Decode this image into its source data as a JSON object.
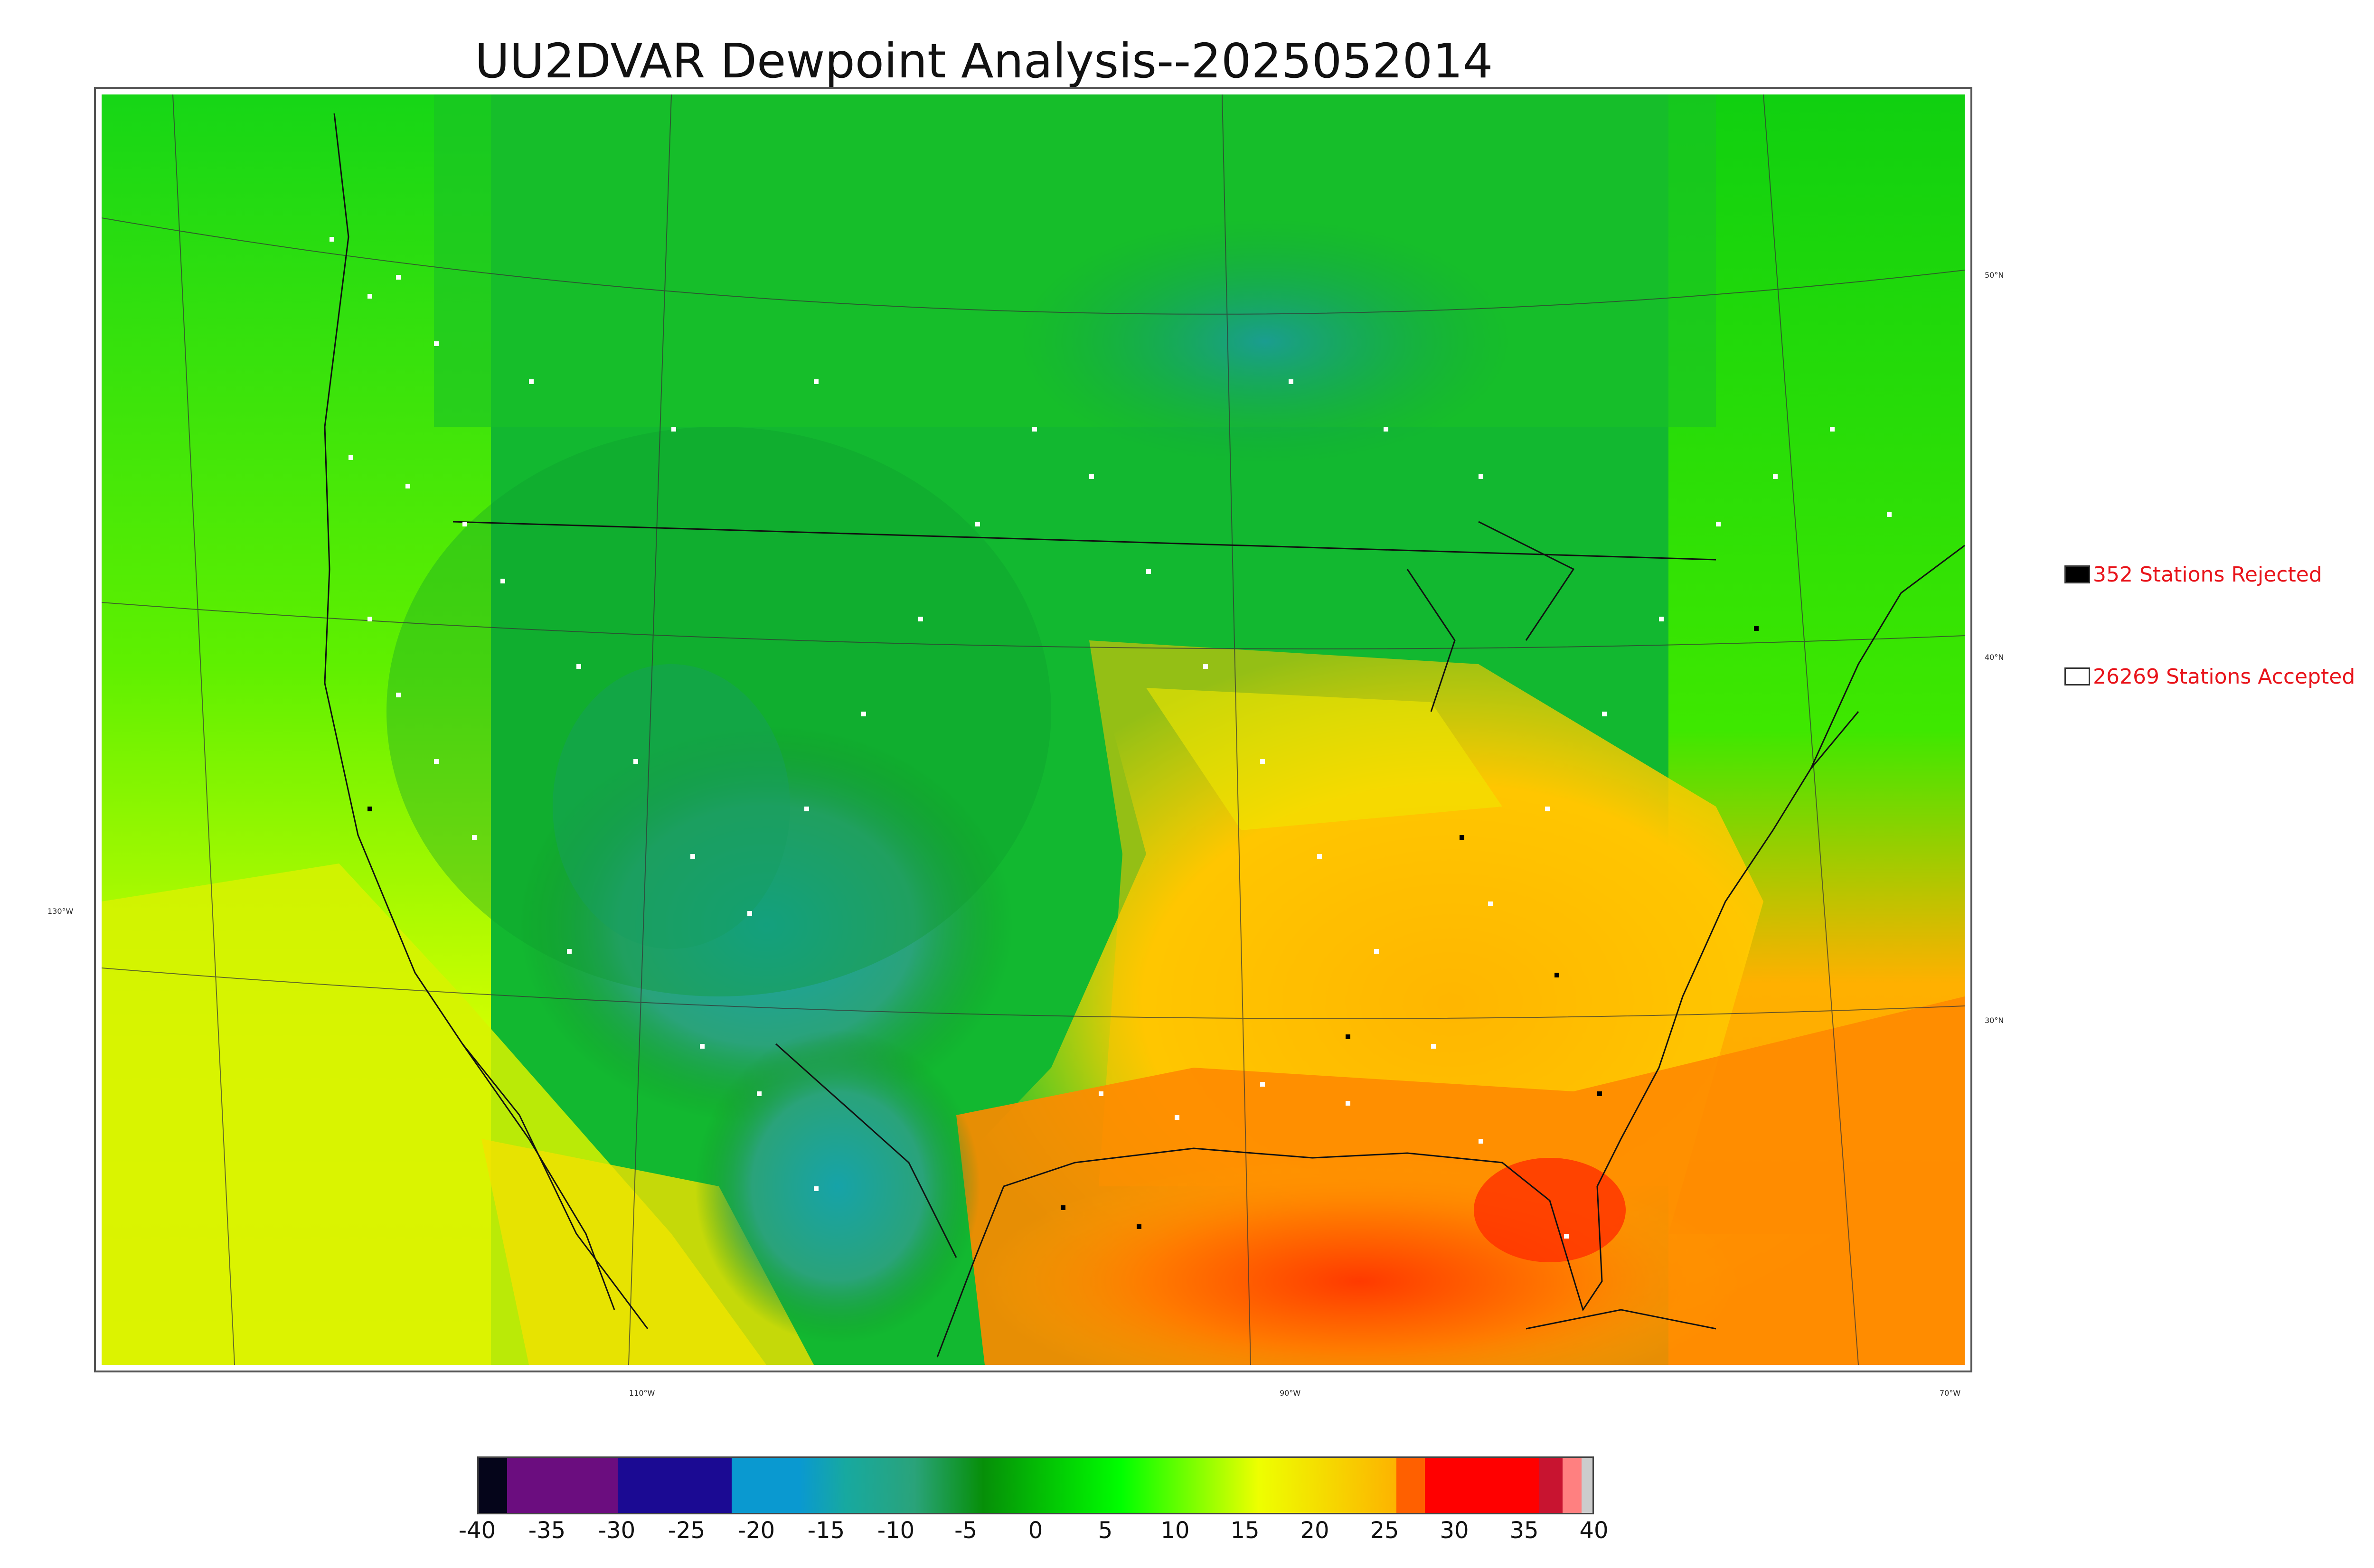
{
  "title": "UU2DVAR Dewpoint Analysis--2025052014",
  "legend": {
    "rejected": {
      "label": "352 Stations Rejected",
      "color": "#000000"
    },
    "accepted": {
      "label": "26269 Stations Accepted",
      "color": "#ffffff"
    },
    "text_color": "#e8141b"
  },
  "map": {
    "lat_labels": [
      "50°N",
      "40°N",
      "30°N"
    ],
    "lon_labels": [
      "130°W",
      "110°W",
      "90°W",
      "70°W"
    ]
  },
  "colorbar": {
    "ticks": [
      "-40",
      "-35",
      "-30",
      "-25",
      "-20",
      "-15",
      "-10",
      "-5",
      "0",
      "5",
      "10",
      "15",
      "20",
      "25",
      "30",
      "35",
      "40"
    ],
    "colors": [
      "#05051a",
      "#6b0d7f",
      "#1b0a93",
      "#0a99d0",
      "#17a9a0",
      "#068f08",
      "#00ff00",
      "#eeff00",
      "#fdb300",
      "#ff4d00",
      "#ff0000",
      "#cccccc"
    ]
  }
}
